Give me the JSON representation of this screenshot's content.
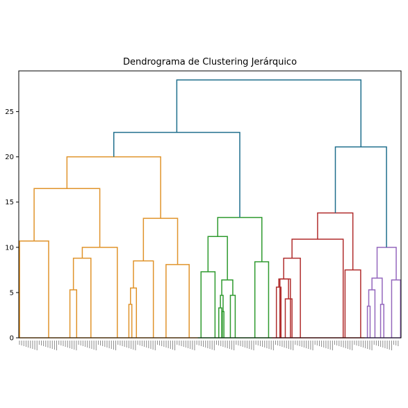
{
  "chart_data": {
    "type": "dendrogram",
    "title": "Dendrograma de Clustering Jerárquico",
    "xlabel": "",
    "ylabel": "",
    "ylim": [
      0,
      29.5
    ],
    "y_ticks": [
      0,
      5,
      10,
      15,
      20,
      25
    ],
    "grid": false,
    "legend": "none",
    "leaf_labels_note": "",
    "clusters": [
      {
        "color": "#e69a2e",
        "leaf_count": 76
      },
      {
        "color": "#2ca02c",
        "leaf_count": 38
      },
      {
        "color": "#b03030",
        "leaf_count": 42
      },
      {
        "color": "#9467bd",
        "leaf_count": 18
      }
    ],
    "above_threshold_color": "#1f6e8c",
    "merges": [
      {
        "x": [
          0.3,
          11.1
        ],
        "y_left": 0,
        "y_right": 0,
        "height": 10.7,
        "color": "orange"
      },
      {
        "x": [
          19.0,
          21.5
        ],
        "y_left": 0,
        "y_right": 0,
        "height": 5.3,
        "color": "orange"
      },
      {
        "x": [
          20.3,
          26.8
        ],
        "y_left": 5.3,
        "y_right": 0,
        "height": 8.8,
        "color": "orange"
      },
      {
        "x": [
          23.6,
          36.6
        ],
        "y_left": 8.8,
        "y_right": 0,
        "height": 10.0,
        "color": "orange"
      },
      {
        "x": [
          5.7,
          30.1
        ],
        "y_left": 10.7,
        "y_right": 10.0,
        "height": 16.5,
        "color": "orange"
      },
      {
        "x": [
          40.9,
          42.0
        ],
        "y_left": 0,
        "y_right": 0,
        "height": 3.7,
        "color": "orange"
      },
      {
        "x": [
          41.5,
          43.7
        ],
        "y_left": 3.7,
        "y_right": 0,
        "height": 5.5,
        "color": "orange"
      },
      {
        "x": [
          42.6,
          50.0
        ],
        "y_left": 5.5,
        "y_right": 0,
        "height": 8.5,
        "color": "orange"
      },
      {
        "x": [
          54.7,
          63.3
        ],
        "y_left": 0,
        "y_right": 0,
        "height": 8.1,
        "color": "orange"
      },
      {
        "x": [
          46.3,
          59.0
        ],
        "y_left": 8.5,
        "y_right": 8.1,
        "height": 13.2,
        "color": "orange"
      },
      {
        "x": [
          17.9,
          52.7
        ],
        "y_left": 16.5,
        "y_right": 13.2,
        "height": 20.0,
        "color": "orange"
      },
      {
        "x": [
          67.7,
          72.9
        ],
        "y_left": 0,
        "y_right": 0,
        "height": 7.3,
        "color": "green"
      },
      {
        "x": [
          74.3,
          75.4
        ],
        "y_left": 0,
        "y_right": 0,
        "height": 3.3,
        "color": "green"
      },
      {
        "x": [
          75.6,
          76.2
        ],
        "y_left": 0,
        "y_right": 0,
        "height": 2.9,
        "color": "green"
      },
      {
        "x": [
          74.9,
          75.9
        ],
        "y_left": 3.3,
        "y_right": 2.9,
        "height": 4.7,
        "color": "green"
      },
      {
        "x": [
          78.6,
          80.4
        ],
        "y_left": 0,
        "y_right": 0,
        "height": 4.7,
        "color": "green"
      },
      {
        "x": [
          75.4,
          79.5
        ],
        "y_left": 4.7,
        "y_right": 4.7,
        "height": 6.4,
        "color": "green"
      },
      {
        "x": [
          70.3,
          77.5
        ],
        "y_left": 7.3,
        "y_right": 6.4,
        "height": 11.2,
        "color": "green"
      },
      {
        "x": [
          87.7,
          92.8
        ],
        "y_left": 0,
        "y_right": 0,
        "height": 8.4,
        "color": "green"
      },
      {
        "x": [
          73.9,
          90.3
        ],
        "y_left": 11.2,
        "y_right": 8.4,
        "height": 13.3,
        "color": "green"
      },
      {
        "x": [
          35.3,
          82.1
        ],
        "y_left": 20.0,
        "y_right": 13.3,
        "height": 22.7,
        "color": "link"
      },
      {
        "x": [
          95.7,
          97.4
        ],
        "y_left": 0,
        "y_right": 0,
        "height": 5.6,
        "color": "red"
      },
      {
        "x": [
          97.0,
          100.9
        ],
        "y_left": 0,
        "y_right": 0,
        "height": 6.5,
        "color": "red"
      },
      {
        "x": [
          99.0,
          101.5
        ],
        "y_left": 0,
        "y_right": 0,
        "height": 4.3,
        "color": "red"
      },
      {
        "x": [
          96.6,
          100.2
        ],
        "y_left": 5.6,
        "y_right": 4.3,
        "height": 6.5,
        "color": "red"
      },
      {
        "x": [
          98.4,
          104.6
        ],
        "y_left": 6.5,
        "y_right": 0,
        "height": 8.8,
        "color": "red"
      },
      {
        "x": [
          101.5,
          120.5
        ],
        "y_left": 8.8,
        "y_right": 0,
        "height": 10.9,
        "color": "red"
      },
      {
        "x": [
          121.2,
          127.0
        ],
        "y_left": 0,
        "y_right": 0,
        "height": 7.5,
        "color": "red"
      },
      {
        "x": [
          111.0,
          124.1
        ],
        "y_left": 10.9,
        "y_right": 7.5,
        "height": 13.8,
        "color": "red"
      },
      {
        "x": [
          129.5,
          130.5
        ],
        "y_left": 0,
        "y_right": 0,
        "height": 3.5,
        "color": "purple"
      },
      {
        "x": [
          130.0,
          132.3
        ],
        "y_left": 3.5,
        "y_right": 0,
        "height": 5.3,
        "color": "purple"
      },
      {
        "x": [
          134.4,
          135.6
        ],
        "y_left": 0,
        "y_right": 0,
        "height": 3.7,
        "color": "purple"
      },
      {
        "x": [
          131.2,
          135.0
        ],
        "y_left": 5.3,
        "y_right": 3.7,
        "height": 6.6,
        "color": "purple"
      },
      {
        "x": [
          138.5,
          141.8
        ],
        "y_left": 0,
        "y_right": 0,
        "height": 6.4,
        "color": "purple"
      },
      {
        "x": [
          133.1,
          140.2
        ],
        "y_left": 6.6,
        "y_right": 6.4,
        "height": 10.0,
        "color": "purple"
      },
      {
        "x": [
          117.6,
          136.6
        ],
        "y_left": 13.8,
        "y_right": 10.0,
        "height": 21.1,
        "color": "link"
      },
      {
        "x": [
          58.7,
          127.1
        ],
        "y_left": 22.7,
        "y_right": 21.1,
        "height": 28.5,
        "color": "link"
      }
    ],
    "x_range": [
      0,
      142
    ]
  },
  "colors": {
    "orange": "#e0932a",
    "green": "#2e9a2e",
    "red": "#b02c2c",
    "purple": "#9467bd",
    "link": "#1f6e8c",
    "axis": "#000000",
    "leaf_label": "#555555"
  }
}
